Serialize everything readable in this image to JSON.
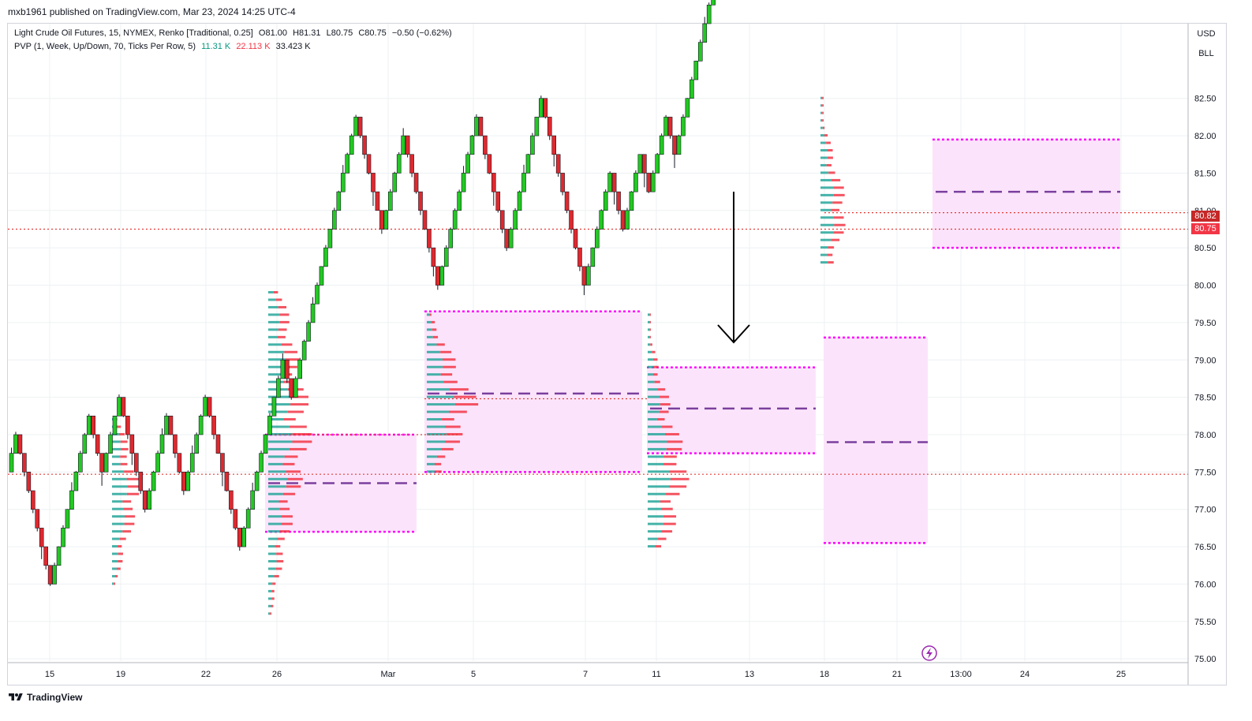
{
  "header": {
    "published": "mxb1961 published on TradingView.com, Mar 23, 2024 14:25 UTC-4"
  },
  "legend": {
    "symbol": "Light Crude Oil Futures, 15, NYMEX, Renko [Traditional, 0.25]",
    "open": "O81.00",
    "high": "H81.31",
    "low": "L80.75",
    "close": "C80.75",
    "change": "−0.50 (−0.62%)",
    "indicator": "PVP (1, Week, Up/Down, 70, Ticks Per Row, 5)",
    "ind_up": "11.31 K",
    "ind_down": "22.113 K",
    "ind_total": "33.423 K"
  },
  "axis_units": {
    "currency": "USD",
    "unit": "BLL"
  },
  "price_labels": {
    "top": "80.82",
    "bottom": "80.75"
  },
  "footer": {
    "brand": "TradingView"
  },
  "colors": {
    "up": "#22c922",
    "down": "#e0282e",
    "magenta": "#ff00ff",
    "poc": "#7b3f9e",
    "fill": "#fbe4fb",
    "vol_up": "#26a69a",
    "vol_dn": "#f23645",
    "grid": "#eef0f3",
    "ref": "#e53935"
  },
  "chart_data": {
    "type": "renko",
    "brick_size": 0.25,
    "y_ticks": [
      "75.00",
      "75.50",
      "76.00",
      "76.50",
      "77.00",
      "77.50",
      "78.00",
      "78.50",
      "79.00",
      "79.50",
      "80.00",
      "80.50",
      "81.00",
      "81.50",
      "82.00",
      "82.50"
    ],
    "ylim": [
      74.97,
      83.5
    ],
    "x_labels": [
      "15",
      "19",
      "22",
      "26",
      "Mar",
      "5",
      "7",
      "11",
      "13",
      "18",
      "21",
      "13:00",
      "24",
      "25"
    ],
    "start_price": 77.5,
    "bricks": "UUDDDDDDDDUUUUUUUUUDDDUUUUDDDDDDUUUUUDDDDUUUUUDDDDDDDDUUUUUUUUUUDDUUUUUUUUUUUUUUUDDDDDDUUUUUDDDDDDDDUUUUUUUUUDDDDDDDUUUUUUUUDDDDDDDDDDUUUUUUDDDUUUUDDUUUUDDUUUUUUUUUUUUUUUUUUUUUUUUUUUUUDDDDDDDDDDDDDUUUUDDDDUDDUUUUDD",
    "value_areas": [
      {
        "vah": 78.0,
        "val": 76.7,
        "poc": 77.35
      },
      {
        "vah": 79.65,
        "val": 77.5,
        "poc": 78.55
      },
      {
        "vah": 78.9,
        "val": 77.75,
        "poc": 78.35
      },
      {
        "vah": 79.3,
        "val": 76.55,
        "poc": 77.9
      },
      {
        "vah": 81.95,
        "val": 80.5,
        "poc": 81.25
      }
    ],
    "reference_lines": [
      77.47,
      78.48,
      78.0,
      80.97,
      80.75
    ],
    "current_price": 80.75
  }
}
